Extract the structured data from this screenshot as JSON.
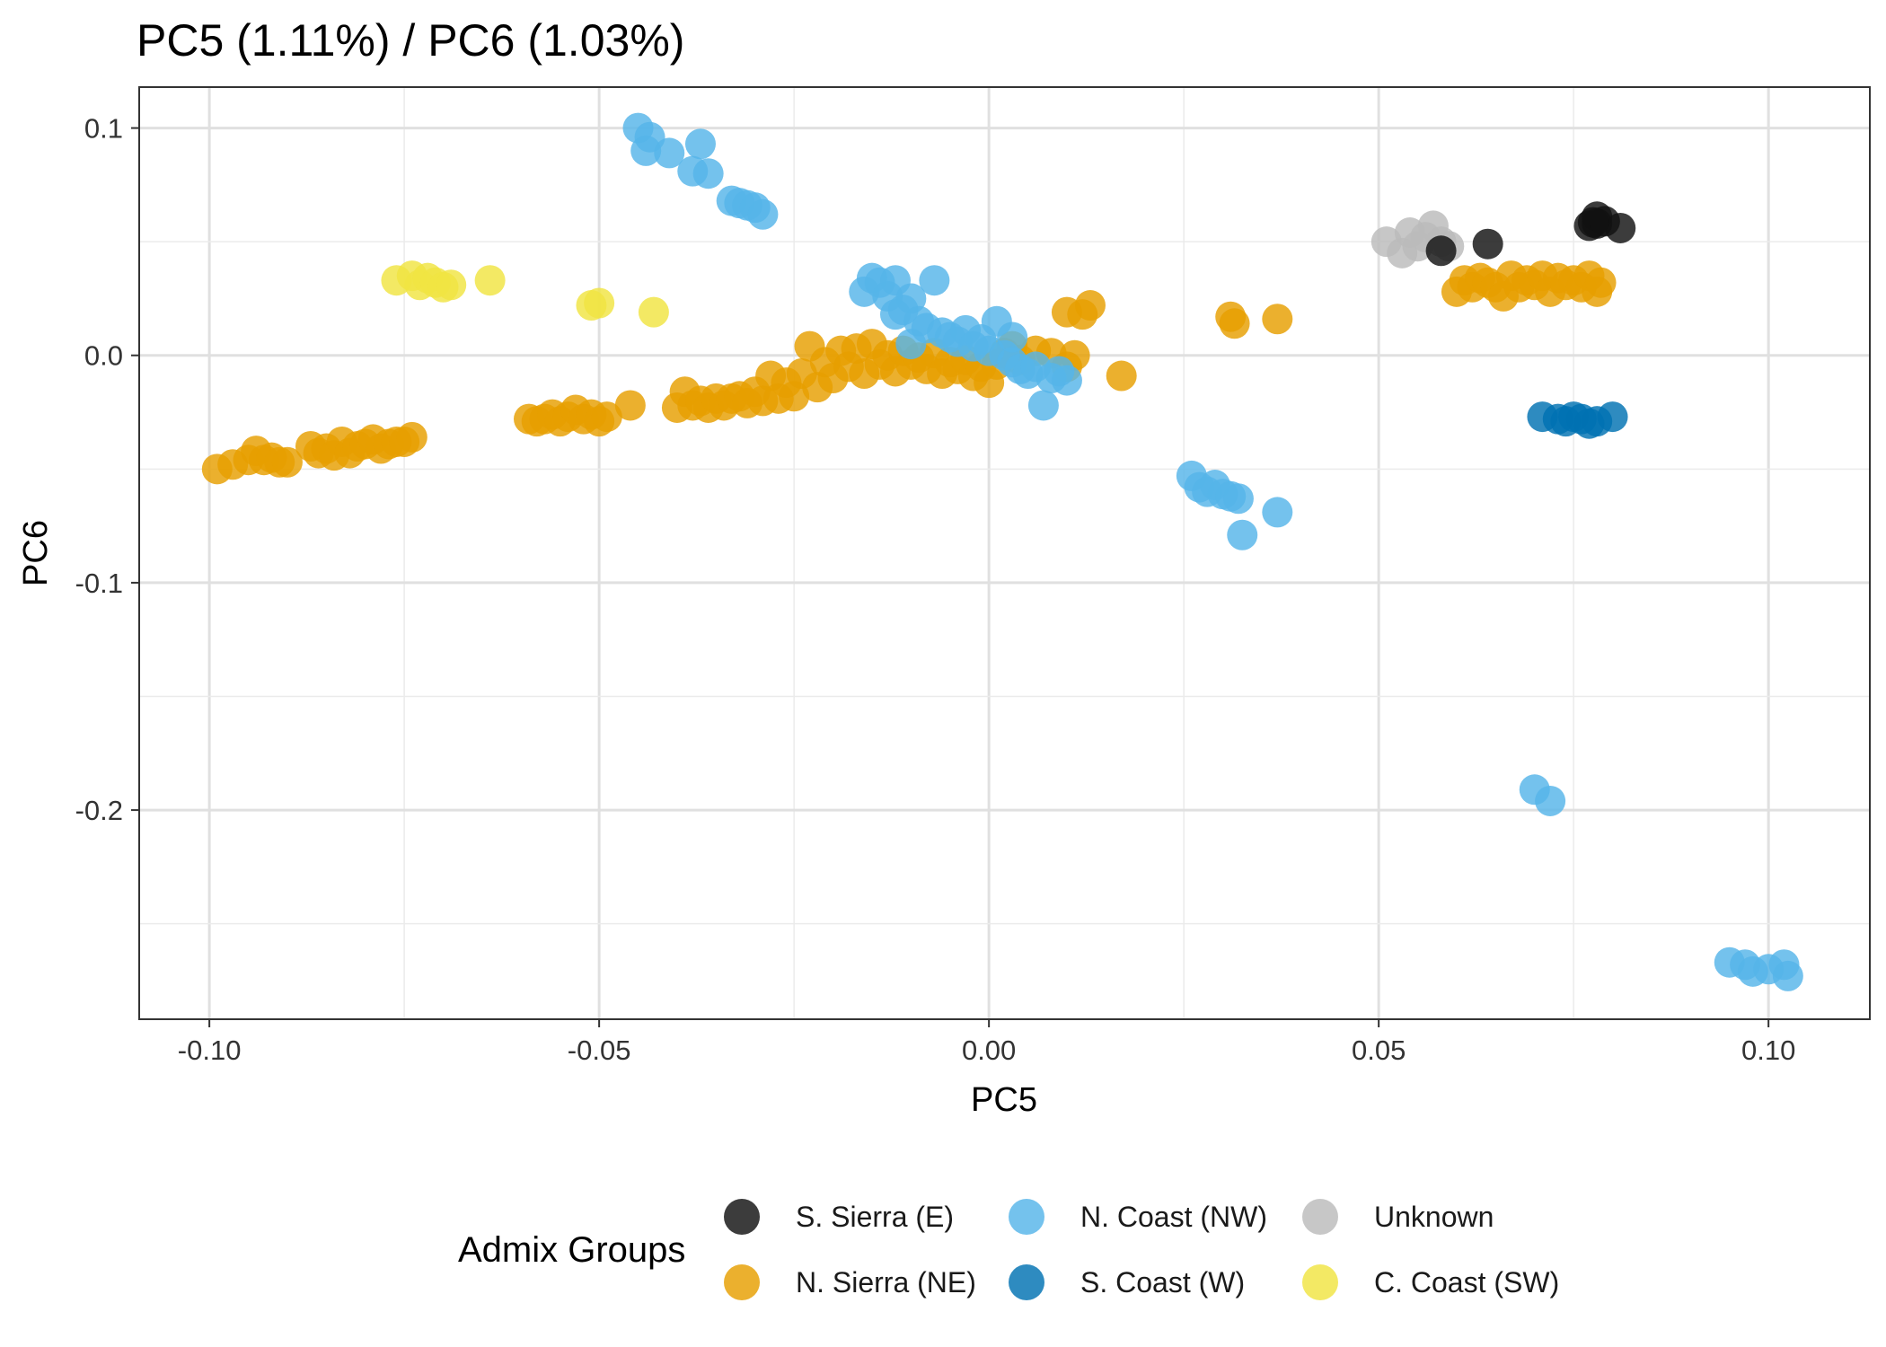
{
  "chart_data": {
    "type": "scatter",
    "title": "PC5 (1.11%) / PC6 (1.03%)",
    "xlabel": "PC5",
    "ylabel": "PC6",
    "xlim": [
      -0.109,
      0.113
    ],
    "ylim": [
      -0.292,
      0.118
    ],
    "x_ticks": [
      -0.1,
      -0.05,
      0.0,
      0.05,
      0.1
    ],
    "x_tick_labels": [
      "-0.10",
      "-0.05",
      "0.00",
      "0.05",
      "0.10"
    ],
    "y_ticks": [
      0.1,
      0.0,
      -0.1,
      -0.2
    ],
    "y_tick_labels": [
      "0.1",
      "0.0",
      "-0.1",
      "-0.2"
    ],
    "grid": true,
    "legend": {
      "title": "Admix Groups",
      "position": "bottom",
      "items": [
        "S. Sierra (E)",
        "N. Sierra (NE)",
        "N. Coast (NW)",
        "S. Coast (W)",
        "Unknown",
        "C. Coast (SW)"
      ]
    },
    "series": [
      {
        "name": "S. Sierra (E)",
        "color": "#111111",
        "points": [
          [
            0.058,
            0.046
          ],
          [
            0.064,
            0.049
          ],
          [
            0.078,
            0.058
          ],
          [
            0.078,
            0.061
          ],
          [
            0.077,
            0.057
          ],
          [
            0.079,
            0.059
          ],
          [
            0.081,
            0.056
          ],
          [
            0.0775,
            0.0585
          ]
        ]
      },
      {
        "name": "N. Sierra (NE)",
        "color": "#E69F00",
        "points": [
          [
            -0.099,
            -0.05
          ],
          [
            -0.097,
            -0.048
          ],
          [
            -0.095,
            -0.046
          ],
          [
            -0.094,
            -0.042
          ],
          [
            -0.093,
            -0.046
          ],
          [
            -0.092,
            -0.045
          ],
          [
            -0.091,
            -0.047
          ],
          [
            -0.09,
            -0.047
          ],
          [
            -0.087,
            -0.04
          ],
          [
            -0.086,
            -0.043
          ],
          [
            -0.085,
            -0.041
          ],
          [
            -0.084,
            -0.044
          ],
          [
            -0.083,
            -0.038
          ],
          [
            -0.082,
            -0.043
          ],
          [
            -0.081,
            -0.04
          ],
          [
            -0.08,
            -0.039
          ],
          [
            -0.079,
            -0.037
          ],
          [
            -0.078,
            -0.041
          ],
          [
            -0.077,
            -0.039
          ],
          [
            -0.076,
            -0.038
          ],
          [
            -0.075,
            -0.038
          ],
          [
            -0.074,
            -0.036
          ],
          [
            -0.059,
            -0.028
          ],
          [
            -0.058,
            -0.029
          ],
          [
            -0.057,
            -0.028
          ],
          [
            -0.056,
            -0.026
          ],
          [
            -0.055,
            -0.029
          ],
          [
            -0.054,
            -0.027
          ],
          [
            -0.053,
            -0.024
          ],
          [
            -0.052,
            -0.028
          ],
          [
            -0.051,
            -0.026
          ],
          [
            -0.05,
            -0.029
          ],
          [
            -0.049,
            -0.027
          ],
          [
            -0.046,
            -0.022
          ],
          [
            -0.04,
            -0.023
          ],
          [
            -0.039,
            -0.016
          ],
          [
            -0.038,
            -0.022
          ],
          [
            -0.037,
            -0.02
          ],
          [
            -0.036,
            -0.023
          ],
          [
            -0.035,
            -0.019
          ],
          [
            -0.034,
            -0.022
          ],
          [
            -0.033,
            -0.019
          ],
          [
            -0.032,
            -0.018
          ],
          [
            -0.031,
            -0.021
          ],
          [
            -0.03,
            -0.016
          ],
          [
            -0.029,
            -0.02
          ],
          [
            -0.028,
            -0.009
          ],
          [
            -0.027,
            -0.019
          ],
          [
            -0.026,
            -0.012
          ],
          [
            -0.025,
            -0.018
          ],
          [
            -0.024,
            -0.008
          ],
          [
            -0.023,
            0.004
          ],
          [
            -0.022,
            -0.014
          ],
          [
            -0.021,
            -0.003
          ],
          [
            -0.02,
            -0.01
          ],
          [
            -0.019,
            0.002
          ],
          [
            -0.018,
            -0.005
          ],
          [
            -0.017,
            0.003
          ],
          [
            -0.016,
            -0.008
          ],
          [
            -0.015,
            0.005
          ],
          [
            -0.014,
            -0.004
          ],
          [
            -0.013,
            0.0
          ],
          [
            -0.012,
            -0.007
          ],
          [
            -0.011,
            0.002
          ],
          [
            -0.01,
            -0.004
          ],
          [
            -0.009,
            -0.001
          ],
          [
            -0.008,
            -0.006
          ],
          [
            -0.007,
            0.001
          ],
          [
            -0.006,
            -0.008
          ],
          [
            -0.005,
            -0.003
          ],
          [
            -0.004,
            -0.006
          ],
          [
            -0.003,
            -0.002
          ],
          [
            -0.002,
            -0.009
          ],
          [
            -0.001,
            -0.005
          ],
          [
            0.0,
            -0.012
          ],
          [
            0.001,
            -0.004
          ],
          [
            0.002,
            0.001
          ],
          [
            0.003,
            0.004
          ],
          [
            0.004,
            -0.002
          ],
          [
            0.006,
            0.002
          ],
          [
            0.008,
            0.001
          ],
          [
            0.01,
            -0.005
          ],
          [
            0.011,
            0.0
          ],
          [
            0.017,
            -0.009
          ],
          [
            0.01,
            0.019
          ],
          [
            0.012,
            0.018
          ],
          [
            0.013,
            0.022
          ],
          [
            0.031,
            0.017
          ],
          [
            0.0315,
            0.014
          ],
          [
            0.037,
            0.016
          ],
          [
            0.06,
            0.028
          ],
          [
            0.061,
            0.033
          ],
          [
            0.062,
            0.03
          ],
          [
            0.063,
            0.034
          ],
          [
            0.064,
            0.032
          ],
          [
            0.065,
            0.03
          ],
          [
            0.066,
            0.026
          ],
          [
            0.067,
            0.035
          ],
          [
            0.068,
            0.03
          ],
          [
            0.069,
            0.033
          ],
          [
            0.07,
            0.031
          ],
          [
            0.071,
            0.035
          ],
          [
            0.072,
            0.028
          ],
          [
            0.073,
            0.034
          ],
          [
            0.074,
            0.031
          ],
          [
            0.075,
            0.033
          ],
          [
            0.076,
            0.03
          ],
          [
            0.077,
            0.035
          ],
          [
            0.078,
            0.028
          ],
          [
            0.0785,
            0.032
          ]
        ]
      },
      {
        "name": "N. Coast (NW)",
        "color": "#56B4E9",
        "points": [
          [
            -0.045,
            0.1
          ],
          [
            -0.044,
            0.09
          ],
          [
            -0.0435,
            0.096
          ],
          [
            -0.041,
            0.089
          ],
          [
            -0.037,
            0.093
          ],
          [
            -0.038,
            0.081
          ],
          [
            -0.036,
            0.08
          ],
          [
            -0.033,
            0.068
          ],
          [
            -0.032,
            0.067
          ],
          [
            -0.031,
            0.066
          ],
          [
            -0.03,
            0.065
          ],
          [
            -0.029,
            0.062
          ],
          [
            -0.016,
            0.028
          ],
          [
            -0.015,
            0.034
          ],
          [
            -0.014,
            0.032
          ],
          [
            -0.013,
            0.026
          ],
          [
            -0.012,
            0.033
          ],
          [
            -0.011,
            0.02
          ],
          [
            -0.01,
            0.025
          ],
          [
            -0.009,
            0.015
          ],
          [
            -0.008,
            0.012
          ],
          [
            -0.007,
            0.033
          ],
          [
            -0.006,
            0.01
          ],
          [
            -0.005,
            0.008
          ],
          [
            -0.004,
            0.006
          ],
          [
            -0.003,
            0.011
          ],
          [
            -0.002,
            0.004
          ],
          [
            -0.001,
            0.007
          ],
          [
            0.0,
            0.002
          ],
          [
            0.001,
            0.015
          ],
          [
            0.002,
            0.0
          ],
          [
            0.003,
            -0.003
          ],
          [
            0.004,
            -0.006
          ],
          [
            0.005,
            -0.008
          ],
          [
            0.006,
            -0.005
          ],
          [
            0.007,
            -0.022
          ],
          [
            0.008,
            -0.01
          ],
          [
            0.009,
            -0.007
          ],
          [
            0.01,
            -0.011
          ],
          [
            0.003,
            0.008
          ],
          [
            -0.01,
            0.005
          ],
          [
            -0.012,
            0.018
          ],
          [
            0.026,
            -0.053
          ],
          [
            0.027,
            -0.058
          ],
          [
            0.028,
            -0.06
          ],
          [
            0.029,
            -0.057
          ],
          [
            0.03,
            -0.061
          ],
          [
            0.031,
            -0.062
          ],
          [
            0.032,
            -0.063
          ],
          [
            0.0325,
            -0.079
          ],
          [
            0.037,
            -0.069
          ],
          [
            0.07,
            -0.191
          ],
          [
            0.072,
            -0.196
          ],
          [
            0.095,
            -0.267
          ],
          [
            0.097,
            -0.268
          ],
          [
            0.098,
            -0.271
          ],
          [
            0.1,
            -0.27
          ],
          [
            0.102,
            -0.268
          ],
          [
            0.1025,
            -0.273
          ]
        ]
      },
      {
        "name": "S. Coast (W)",
        "color": "#0072B2",
        "points": [
          [
            0.071,
            -0.027
          ],
          [
            0.073,
            -0.028
          ],
          [
            0.074,
            -0.029
          ],
          [
            0.075,
            -0.027
          ],
          [
            0.076,
            -0.028
          ],
          [
            0.077,
            -0.03
          ],
          [
            0.078,
            -0.029
          ],
          [
            0.08,
            -0.027
          ]
        ]
      },
      {
        "name": "Unknown",
        "color": "#BBBBBB",
        "points": [
          [
            0.051,
            0.05
          ],
          [
            0.053,
            0.045
          ],
          [
            0.054,
            0.054
          ],
          [
            0.055,
            0.048
          ],
          [
            0.056,
            0.052
          ],
          [
            0.057,
            0.057
          ],
          [
            0.058,
            0.05
          ],
          [
            0.059,
            0.048
          ]
        ]
      },
      {
        "name": "C. Coast (SW)",
        "color": "#F0E442",
        "points": [
          [
            -0.076,
            0.033
          ],
          [
            -0.074,
            0.035
          ],
          [
            -0.073,
            0.031
          ],
          [
            -0.072,
            0.034
          ],
          [
            -0.071,
            0.032
          ],
          [
            -0.07,
            0.03
          ],
          [
            -0.069,
            0.031
          ],
          [
            -0.064,
            0.033
          ],
          [
            -0.051,
            0.022
          ],
          [
            -0.05,
            0.023
          ],
          [
            -0.043,
            0.019
          ]
        ]
      }
    ]
  }
}
